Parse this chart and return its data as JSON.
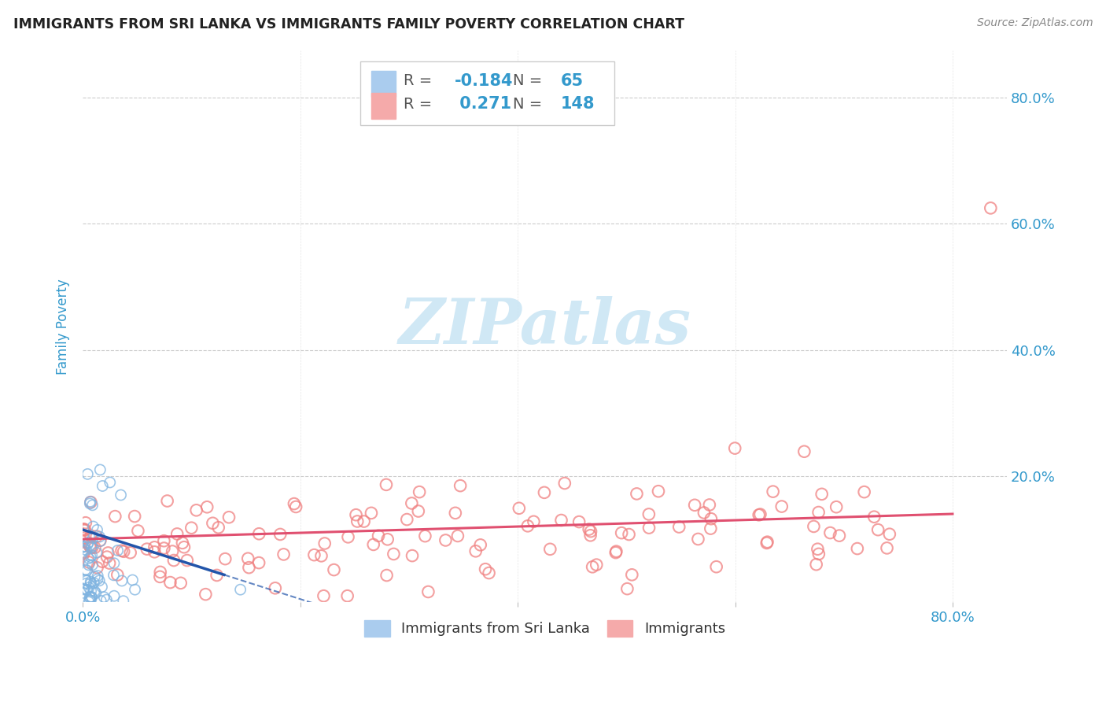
{
  "title": "IMMIGRANTS FROM SRI LANKA VS IMMIGRANTS FAMILY POVERTY CORRELATION CHART",
  "source": "Source: ZipAtlas.com",
  "ylabel": "Family Poverty",
  "xlim": [
    0.0,
    0.85
  ],
  "ylim": [
    0.0,
    0.875
  ],
  "xtick_labels": [
    "0.0%",
    "",
    "",
    "",
    "80.0%"
  ],
  "xtick_values": [
    0.0,
    0.2,
    0.4,
    0.6,
    0.8
  ],
  "ytick_labels": [
    "20.0%",
    "40.0%",
    "60.0%",
    "80.0%"
  ],
  "ytick_values": [
    0.2,
    0.4,
    0.6,
    0.8
  ],
  "blue_R": -0.184,
  "blue_N": 65,
  "pink_R": 0.271,
  "pink_N": 148,
  "blue_color": "#7EB3E0",
  "pink_color": "#F08080",
  "blue_line_color": "#2255AA",
  "pink_line_color": "#E05070",
  "watermark": "ZIPatlas",
  "legend_blue_label": "Immigrants from Sri Lanka",
  "legend_pink_label": "Immigrants",
  "background_color": "#FFFFFF",
  "title_color": "#222222",
  "tick_label_color": "#3399CC",
  "grid_color": "#CCCCCC",
  "blue_legend_sq": "#AACCEE",
  "pink_legend_sq": "#F5AAAA"
}
